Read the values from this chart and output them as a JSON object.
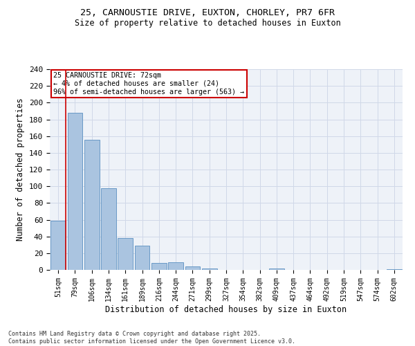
{
  "title_line1": "25, CARNOUSTIE DRIVE, EUXTON, CHORLEY, PR7 6FR",
  "title_line2": "Size of property relative to detached houses in Euxton",
  "xlabel": "Distribution of detached houses by size in Euxton",
  "ylabel": "Number of detached properties",
  "bar_labels": [
    "51sqm",
    "79sqm",
    "106sqm",
    "134sqm",
    "161sqm",
    "189sqm",
    "216sqm",
    "244sqm",
    "271sqm",
    "299sqm",
    "327sqm",
    "354sqm",
    "382sqm",
    "409sqm",
    "437sqm",
    "464sqm",
    "492sqm",
    "519sqm",
    "547sqm",
    "574sqm",
    "602sqm"
  ],
  "bar_values": [
    59,
    188,
    156,
    98,
    38,
    29,
    8,
    9,
    4,
    2,
    0,
    0,
    0,
    2,
    0,
    0,
    0,
    0,
    0,
    0,
    1
  ],
  "bar_color": "#aac4e0",
  "bar_edge_color": "#5a8fc0",
  "annotation_box_text": "25 CARNOUSTIE DRIVE: 72sqm\n← 4% of detached houses are smaller (24)\n96% of semi-detached houses are larger (563) →",
  "annotation_box_color": "#ffffff",
  "annotation_box_edge_color": "#cc0000",
  "vline_color": "#cc0000",
  "ylim": [
    0,
    240
  ],
  "yticks": [
    0,
    20,
    40,
    60,
    80,
    100,
    120,
    140,
    160,
    180,
    200,
    220,
    240
  ],
  "grid_color": "#d0d8e8",
  "bg_color": "#eef2f8",
  "footer_line1": "Contains HM Land Registry data © Crown copyright and database right 2025.",
  "footer_line2": "Contains public sector information licensed under the Open Government Licence v3.0."
}
